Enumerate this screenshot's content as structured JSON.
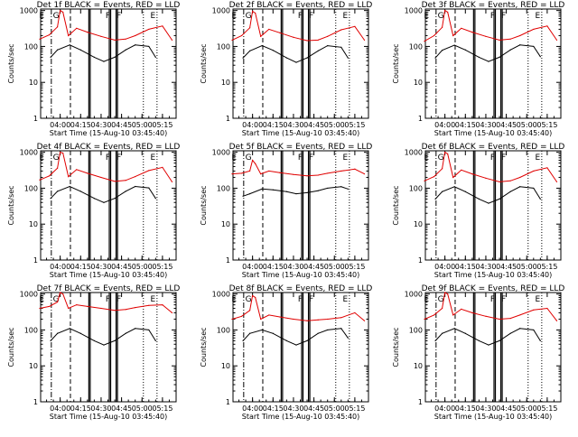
{
  "figure": {
    "colors": {
      "events": "#000000",
      "lld": "#e00000",
      "axis": "#000000"
    }
  },
  "chart_data": [
    {
      "type": "line",
      "title": "Det 1f BLACK = Events, RED = LLD",
      "xlabel": "Start Time (15-Aug-10 03:45:40)",
      "ylabel": "Counts/sec",
      "yscale": "log",
      "ylim": [
        1,
        1100
      ],
      "xlim": [
        "03:45:40",
        "05:25:00"
      ],
      "xticks": [
        "04:00",
        "04:15",
        "04:30",
        "04:45",
        "05:00",
        "05:15"
      ],
      "yticks": [
        "1",
        "10",
        "100",
        "1000"
      ],
      "markers": [
        "E",
        "G",
        "F",
        "F",
        "E"
      ],
      "series": [
        {
          "name": "LLD",
          "x": [
            "03:45",
            "03:52",
            "03:58",
            "04:00",
            "04:02",
            "04:06",
            "04:12",
            "04:20",
            "04:30",
            "04:40",
            "04:48",
            "04:55",
            "05:05",
            "05:15",
            "05:22"
          ],
          "values": [
            160,
            210,
            350,
            1000,
            900,
            200,
            320,
            250,
            190,
            150,
            160,
            200,
            300,
            370,
            150
          ]
        },
        {
          "name": "Events",
          "x": [
            "03:53",
            "03:58",
            "04:07",
            "04:15",
            "04:25",
            "04:32",
            "04:40",
            "04:48",
            "04:55",
            "05:05",
            "05:10"
          ],
          "values": [
            50,
            80,
            110,
            80,
            50,
            38,
            50,
            80,
            110,
            100,
            50
          ]
        }
      ]
    },
    {
      "type": "line",
      "title": "Det 2f BLACK = Events, RED = LLD",
      "xlabel": "Start Time (15-Aug-10 03:45:40)",
      "ylabel": "Counts/sec",
      "yscale": "log",
      "ylim": [
        1,
        1100
      ],
      "xlim": [
        "03:45:40",
        "05:25:00"
      ],
      "xticks": [
        "04:00",
        "04:15",
        "04:30",
        "04:45",
        "05:00",
        "05:15"
      ],
      "yticks": [
        "1",
        "10",
        "100",
        "1000"
      ],
      "markers": [
        "E",
        "G",
        "F",
        "F",
        "E"
      ],
      "series": [
        {
          "name": "LLD",
          "x": [
            "03:45",
            "03:52",
            "03:58",
            "04:00",
            "04:02",
            "04:06",
            "04:12",
            "04:20",
            "04:30",
            "04:40",
            "04:48",
            "04:55",
            "05:05",
            "05:15",
            "05:22"
          ],
          "values": [
            150,
            200,
            330,
            950,
            850,
            190,
            300,
            240,
            180,
            145,
            150,
            190,
            290,
            360,
            150
          ]
        },
        {
          "name": "Events",
          "x": [
            "03:53",
            "03:58",
            "04:07",
            "04:15",
            "04:25",
            "04:32",
            "04:40",
            "04:48",
            "04:55",
            "05:05",
            "05:10"
          ],
          "values": [
            48,
            75,
            105,
            78,
            48,
            36,
            48,
            75,
            105,
            95,
            48
          ]
        }
      ]
    },
    {
      "type": "line",
      "title": "Det 3f BLACK = Events, RED = LLD",
      "xlabel": "Start Time (15-Aug-10 03:45:40)",
      "ylabel": "Counts/sec",
      "yscale": "log",
      "ylim": [
        1,
        1100
      ],
      "xlim": [
        "03:45:40",
        "05:25:00"
      ],
      "xticks": [
        "04:00",
        "04:15",
        "04:30",
        "04:45",
        "05:00",
        "05:15"
      ],
      "yticks": [
        "1",
        "10",
        "100",
        "1000"
      ],
      "markers": [
        "E",
        "G",
        "F",
        "F",
        "E"
      ],
      "series": [
        {
          "name": "LLD",
          "x": [
            "03:45",
            "03:52",
            "03:58",
            "04:00",
            "04:02",
            "04:06",
            "04:12",
            "04:20",
            "04:30",
            "04:40",
            "04:48",
            "04:55",
            "05:05",
            "05:15",
            "05:22"
          ],
          "values": [
            140,
            200,
            340,
            1000,
            900,
            200,
            320,
            250,
            190,
            150,
            160,
            200,
            300,
            370,
            150
          ]
        },
        {
          "name": "Events",
          "x": [
            "03:53",
            "03:58",
            "04:07",
            "04:15",
            "04:25",
            "04:32",
            "04:40",
            "04:48",
            "04:55",
            "05:05",
            "05:10"
          ],
          "values": [
            48,
            78,
            108,
            80,
            50,
            38,
            50,
            80,
            110,
            100,
            52
          ]
        }
      ]
    },
    {
      "type": "line",
      "title": "Det 4f BLACK = Events, RED = LLD",
      "xlabel": "Start Time (15-Aug-10 03:45:40)",
      "ylabel": "Counts/sec",
      "yscale": "log",
      "ylim": [
        1,
        1100
      ],
      "xlim": [
        "03:45:40",
        "05:25:00"
      ],
      "xticks": [
        "04:00",
        "04:15",
        "04:30",
        "04:45",
        "05:00",
        "05:15"
      ],
      "yticks": [
        "1",
        "10",
        "100",
        "1000"
      ],
      "markers": [
        "E",
        "G",
        "F",
        "F",
        "E"
      ],
      "series": [
        {
          "name": "LLD",
          "x": [
            "03:45",
            "03:52",
            "03:58",
            "04:00",
            "04:02",
            "04:06",
            "04:12",
            "04:20",
            "04:30",
            "04:40",
            "04:48",
            "04:55",
            "05:05",
            "05:15",
            "05:22"
          ],
          "values": [
            170,
            220,
            360,
            1000,
            950,
            210,
            330,
            260,
            200,
            155,
            165,
            210,
            310,
            380,
            150
          ]
        },
        {
          "name": "Events",
          "x": [
            "03:53",
            "03:58",
            "04:07",
            "04:15",
            "04:25",
            "04:32",
            "04:40",
            "04:48",
            "04:55",
            "05:05",
            "05:10"
          ],
          "values": [
            52,
            82,
            112,
            82,
            52,
            40,
            52,
            82,
            112,
            102,
            52
          ]
        }
      ]
    },
    {
      "type": "line",
      "title": "Det 5f BLACK = Events, RED = LLD",
      "xlabel": "Start Time (15-Aug-10 03:45:40)",
      "ylabel": "Counts/sec",
      "yscale": "log",
      "ylim": [
        1,
        1100
      ],
      "xlim": [
        "03:45:40",
        "05:25:00"
      ],
      "xticks": [
        "04:00",
        "04:15",
        "04:30",
        "04:45",
        "05:00",
        "05:15"
      ],
      "yticks": [
        "1",
        "10",
        "100",
        "1000"
      ],
      "markers": [
        "E",
        "G",
        "F",
        "F",
        "E"
      ],
      "series": [
        {
          "name": "LLD",
          "x": [
            "03:45",
            "03:52",
            "03:58",
            "04:00",
            "04:02",
            "04:06",
            "04:12",
            "04:20",
            "04:30",
            "04:40",
            "04:48",
            "04:55",
            "05:05",
            "05:15",
            "05:22"
          ],
          "values": [
            250,
            260,
            300,
            600,
            480,
            250,
            300,
            270,
            240,
            220,
            230,
            260,
            300,
            340,
            250
          ]
        },
        {
          "name": "Events",
          "x": [
            "03:53",
            "03:58",
            "04:07",
            "04:15",
            "04:25",
            "04:32",
            "04:40",
            "04:48",
            "04:55",
            "05:05",
            "05:10"
          ],
          "values": [
            60,
            70,
            95,
            90,
            80,
            70,
            75,
            85,
            100,
            110,
            95
          ]
        }
      ]
    },
    {
      "type": "line",
      "title": "Det 6f BLACK = Events, RED = LLD",
      "xlabel": "Start Time (15-Aug-10 03:45:40)",
      "ylabel": "Counts/sec",
      "yscale": "log",
      "ylim": [
        1,
        1100
      ],
      "xlim": [
        "03:45:40",
        "05:25:00"
      ],
      "xticks": [
        "04:00",
        "04:15",
        "04:30",
        "04:45",
        "05:00",
        "05:15"
      ],
      "yticks": [
        "1",
        "10",
        "100",
        "1000"
      ],
      "markers": [
        "E",
        "G",
        "F",
        "F",
        "E"
      ],
      "series": [
        {
          "name": "LLD",
          "x": [
            "03:45",
            "03:52",
            "03:58",
            "04:00",
            "04:02",
            "04:06",
            "04:12",
            "04:20",
            "04:30",
            "04:40",
            "04:48",
            "04:55",
            "05:05",
            "05:15",
            "05:22"
          ],
          "values": [
            160,
            210,
            350,
            1000,
            900,
            200,
            320,
            250,
            190,
            150,
            160,
            200,
            300,
            370,
            150
          ]
        },
        {
          "name": "Events",
          "x": [
            "03:53",
            "03:58",
            "04:07",
            "04:15",
            "04:25",
            "04:32",
            "04:40",
            "04:48",
            "04:55",
            "05:05",
            "05:10"
          ],
          "values": [
            50,
            80,
            110,
            80,
            50,
            38,
            50,
            80,
            110,
            100,
            50
          ]
        }
      ]
    },
    {
      "type": "line",
      "title": "Det 7f BLACK = Events, RED = LLD",
      "xlabel": "Start Time (15-Aug-10 03:45:40)",
      "ylabel": "Counts/sec",
      "yscale": "log",
      "ylim": [
        1,
        1100
      ],
      "xlim": [
        "03:45:40",
        "05:25:00"
      ],
      "xticks": [
        "04:00",
        "04:15",
        "04:30",
        "04:45",
        "05:00",
        "05:15"
      ],
      "yticks": [
        "1",
        "10",
        "100",
        "1000"
      ],
      "markers": [
        "E",
        "G",
        "F",
        "F",
        "E"
      ],
      "series": [
        {
          "name": "LLD",
          "x": [
            "03:45",
            "03:52",
            "03:58",
            "04:00",
            "04:02",
            "04:06",
            "04:12",
            "04:20",
            "04:30",
            "04:40",
            "04:48",
            "04:55",
            "05:05",
            "05:15",
            "05:22"
          ],
          "values": [
            400,
            450,
            600,
            1100,
            1000,
            400,
            500,
            450,
            400,
            350,
            370,
            420,
            480,
            500,
            300
          ]
        },
        {
          "name": "Events",
          "x": [
            "03:53",
            "03:58",
            "04:07",
            "04:15",
            "04:25",
            "04:32",
            "04:40",
            "04:48",
            "04:55",
            "05:05",
            "05:10"
          ],
          "values": [
            50,
            80,
            110,
            80,
            50,
            38,
            50,
            80,
            110,
            100,
            50
          ]
        }
      ]
    },
    {
      "type": "line",
      "title": "Det 8f BLACK = Events, RED = LLD",
      "xlabel": "Start Time (15-Aug-10 03:45:40)",
      "ylabel": "Counts/sec",
      "yscale": "log",
      "ylim": [
        1,
        1100
      ],
      "xlim": [
        "03:45:40",
        "05:25:00"
      ],
      "xticks": [
        "04:00",
        "04:15",
        "04:30",
        "04:45",
        "05:00",
        "05:15"
      ],
      "yticks": [
        "1",
        "10",
        "100",
        "1000"
      ],
      "markers": [
        "E",
        "G",
        "F",
        "F",
        "E"
      ],
      "series": [
        {
          "name": "LLD",
          "x": [
            "03:45",
            "03:52",
            "03:58",
            "04:00",
            "04:02",
            "04:06",
            "04:12",
            "04:20",
            "04:30",
            "04:40",
            "04:48",
            "04:55",
            "05:05",
            "05:15",
            "05:22"
          ],
          "values": [
            200,
            240,
            350,
            900,
            800,
            200,
            260,
            230,
            200,
            180,
            190,
            200,
            220,
            300,
            180
          ]
        },
        {
          "name": "Events",
          "x": [
            "03:53",
            "03:58",
            "04:07",
            "04:15",
            "04:25",
            "04:32",
            "04:40",
            "04:48",
            "04:55",
            "05:05",
            "05:10"
          ],
          "values": [
            50,
            80,
            100,
            80,
            50,
            38,
            50,
            80,
            100,
            110,
            60
          ]
        }
      ]
    },
    {
      "type": "line",
      "title": "Det 9f BLACK = Events, RED = LLD",
      "xlabel": "Start Time (15-Aug-10 03:45:40)",
      "ylabel": "Counts/sec",
      "yscale": "log",
      "ylim": [
        1,
        1100
      ],
      "xlim": [
        "03:45:40",
        "05:25:00"
      ],
      "xticks": [
        "04:00",
        "04:15",
        "04:30",
        "04:45",
        "05:00",
        "05:15"
      ],
      "yticks": [
        "1",
        "10",
        "100",
        "1000"
      ],
      "markers": [
        "E",
        "G",
        "F",
        "F",
        "E"
      ],
      "series": [
        {
          "name": "LLD",
          "x": [
            "03:45",
            "03:52",
            "03:58",
            "04:00",
            "04:02",
            "04:06",
            "04:12",
            "04:20",
            "04:30",
            "04:40",
            "04:48",
            "04:55",
            "05:05",
            "05:15",
            "05:22"
          ],
          "values": [
            200,
            260,
            400,
            1100,
            1000,
            260,
            380,
            300,
            240,
            200,
            210,
            260,
            360,
            400,
            180
          ]
        },
        {
          "name": "Events",
          "x": [
            "03:53",
            "03:58",
            "04:07",
            "04:15",
            "04:25",
            "04:32",
            "04:40",
            "04:48",
            "04:55",
            "05:05",
            "05:10"
          ],
          "values": [
            50,
            80,
            110,
            80,
            50,
            38,
            50,
            80,
            110,
            100,
            50
          ]
        }
      ]
    }
  ]
}
